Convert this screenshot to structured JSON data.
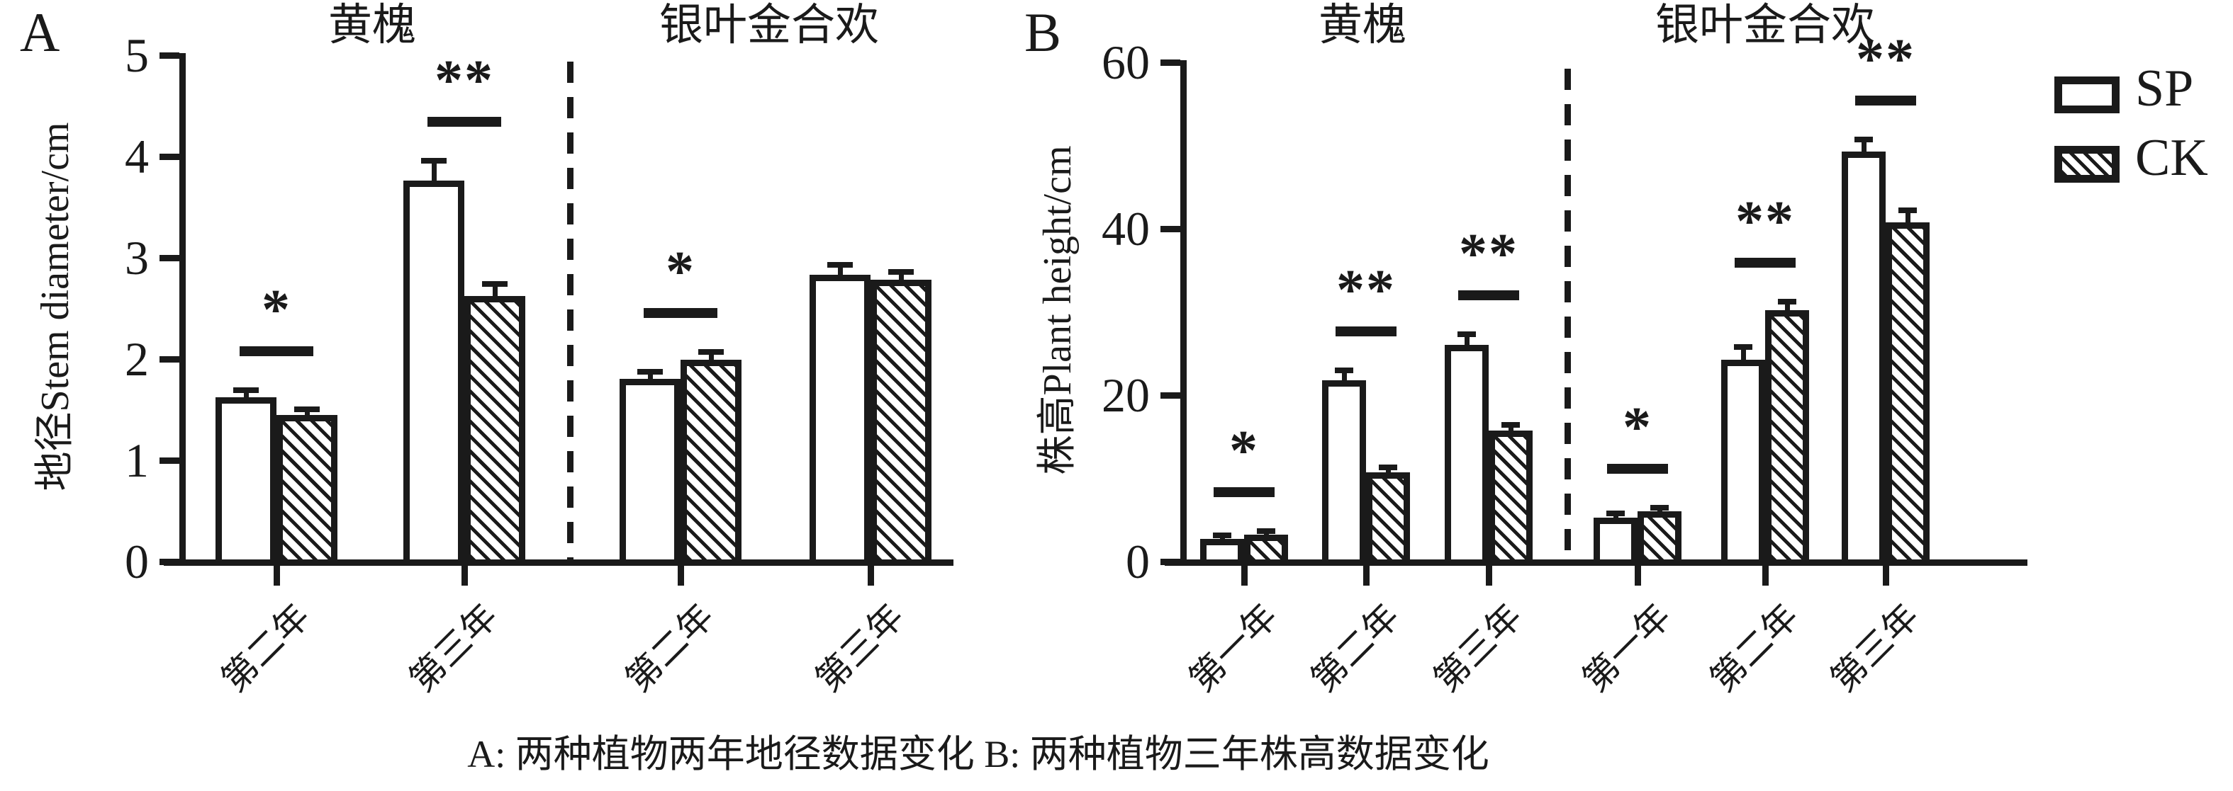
{
  "figure": {
    "background": "#ffffff",
    "ink_color": "#1a1a1a",
    "caption": "A: 两种植物两年地径数据变化 B: 两种植物三年株高数据变化"
  },
  "legend": {
    "items": [
      {
        "label": "SP",
        "swatch": "open"
      },
      {
        "label": "CK",
        "swatch": "hatched-diagonal"
      }
    ]
  },
  "chart_data": [
    {
      "type": "bar",
      "panel_letter": "A",
      "title_groups": [
        "黄槐",
        "银叶金合欢"
      ],
      "ylabel": "地径Stem diameter/cm",
      "ylim": [
        0,
        5
      ],
      "yticks": [
        0,
        1,
        2,
        3,
        4,
        5
      ],
      "series": [
        "SP",
        "CK"
      ],
      "legend_position": "outside-right",
      "grid": false,
      "divider": "dashed-vertical-between-species",
      "groups": [
        {
          "species": "黄槐",
          "category": "第二年",
          "SP": 1.6,
          "SP_err": 0.07,
          "CK": 1.43,
          "CK_err": 0.05,
          "significance": "*"
        },
        {
          "species": "黄槐",
          "category": "第三年",
          "SP": 3.74,
          "SP_err": 0.2,
          "CK": 2.6,
          "CK_err": 0.12,
          "significance": "**"
        },
        {
          "species": "银叶金合欢",
          "category": "第二年",
          "SP": 1.78,
          "SP_err": 0.07,
          "CK": 1.97,
          "CK_err": 0.08,
          "significance": "*"
        },
        {
          "species": "银叶金合欢",
          "category": "第三年",
          "SP": 2.81,
          "SP_err": 0.1,
          "CK": 2.76,
          "CK_err": 0.08,
          "significance": ""
        }
      ]
    },
    {
      "type": "bar",
      "panel_letter": "B",
      "title_groups": [
        "黄槐",
        "银叶金合欢"
      ],
      "ylabel": "株高Plant height/cm",
      "ylim": [
        0,
        60
      ],
      "yticks": [
        0,
        20,
        40,
        60
      ],
      "series": [
        "SP",
        "CK"
      ],
      "legend_position": "outside-right",
      "grid": false,
      "divider": "dashed-vertical-between-species",
      "groups": [
        {
          "species": "黄槐",
          "category": "第一年",
          "SP": 2.5,
          "SP_err": 0.4,
          "CK": 3.0,
          "CK_err": 0.4,
          "significance": "*"
        },
        {
          "species": "黄槐",
          "category": "第二年",
          "SP": 21.5,
          "SP_err": 1.2,
          "CK": 10.5,
          "CK_err": 0.6,
          "significance": "**"
        },
        {
          "species": "黄槐",
          "category": "第三年",
          "SP": 25.8,
          "SP_err": 1.3,
          "CK": 15.5,
          "CK_err": 0.7,
          "significance": "**"
        },
        {
          "species": "银叶金合欢",
          "category": "第一年",
          "SP": 5.0,
          "SP_err": 0.5,
          "CK": 5.8,
          "CK_err": 0.4,
          "significance": "*"
        },
        {
          "species": "银叶金合欢",
          "category": "第二年",
          "SP": 24.0,
          "SP_err": 1.5,
          "CK": 30.0,
          "CK_err": 1.0,
          "significance": "**"
        },
        {
          "species": "银叶金合欢",
          "category": "第三年",
          "SP": 49.0,
          "SP_err": 1.5,
          "CK": 40.5,
          "CK_err": 1.5,
          "significance": "**"
        }
      ]
    }
  ]
}
